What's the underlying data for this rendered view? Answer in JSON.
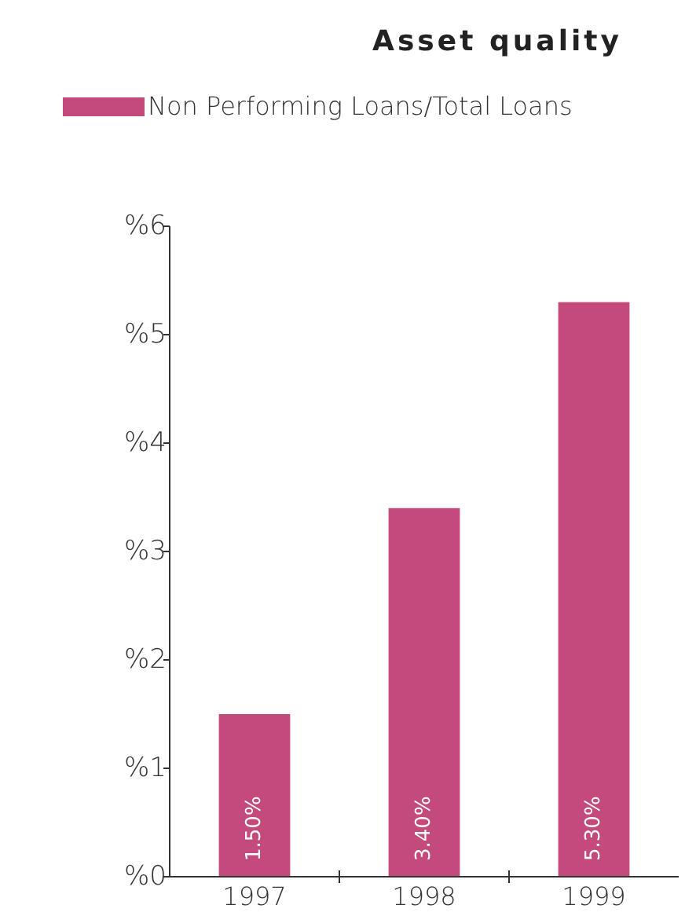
{
  "chart_data": {
    "type": "bar",
    "title": "Asset quality",
    "categories": [
      "1997",
      "1998",
      "1999"
    ],
    "series": [
      {
        "name": "Non Performing Loans/Total Loans",
        "color": "#c44a7c",
        "values": [
          1.5,
          3.4,
          5.3
        ],
        "value_labels": [
          "1.50%",
          "3.40%",
          "5.30%"
        ]
      }
    ],
    "ylim": [
      0,
      6
    ],
    "yticks": [
      {
        "value": 0,
        "label": "%0"
      },
      {
        "value": 1,
        "label": "%1"
      },
      {
        "value": 2,
        "label": "%2"
      },
      {
        "value": 3,
        "label": "%3"
      },
      {
        "value": 4,
        "label": "%4"
      },
      {
        "value": 5,
        "label": "%5"
      },
      {
        "value": 6,
        "label": "%6"
      }
    ],
    "grid": false,
    "legend": "top left"
  }
}
